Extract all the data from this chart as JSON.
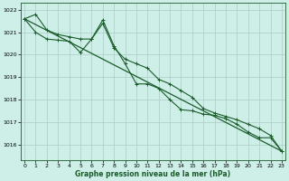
{
  "title": "Graphe pression niveau de la mer (hPa)",
  "background_color": "#ceeee8",
  "grid_color": "#aaccc4",
  "line_color": "#1a5c2a",
  "x_ticks": [
    0,
    1,
    2,
    3,
    4,
    5,
    6,
    7,
    8,
    9,
    10,
    11,
    12,
    13,
    14,
    15,
    16,
    17,
    18,
    19,
    20,
    21,
    22,
    23
  ],
  "y_ticks": [
    1016,
    1017,
    1018,
    1019,
    1020,
    1021,
    1022
  ],
  "ylim": [
    1015.3,
    1022.3
  ],
  "xlim": [
    -0.3,
    23.3
  ],
  "series1_x": [
    0,
    1,
    2,
    3,
    4,
    5,
    6,
    7,
    8,
    9,
    10,
    11,
    12,
    13,
    14,
    15,
    16,
    17,
    18,
    19,
    20,
    21,
    22,
    23
  ],
  "series1_y": [
    1021.6,
    1021.8,
    1021.1,
    1020.9,
    1020.8,
    1020.7,
    1020.7,
    1021.4,
    1020.3,
    1019.8,
    1019.6,
    1019.4,
    1018.9,
    1018.7,
    1018.4,
    1018.1,
    1017.6,
    1017.4,
    1017.25,
    1017.1,
    1016.9,
    1016.7,
    1016.4,
    1015.7
  ],
  "series2_x": [
    0,
    1,
    2,
    3,
    4,
    5,
    6,
    7,
    8,
    9,
    10,
    11,
    12,
    13,
    14,
    15,
    16,
    17,
    18,
    19,
    20,
    21,
    22,
    23
  ],
  "series2_y": [
    1021.6,
    1021.0,
    1020.7,
    1020.65,
    1020.6,
    1020.1,
    1020.7,
    1021.55,
    1020.4,
    1019.6,
    1018.7,
    1018.7,
    1018.5,
    1018.0,
    1017.55,
    1017.5,
    1017.35,
    1017.3,
    1017.15,
    1016.9,
    1016.55,
    1016.3,
    1016.3,
    1015.7
  ],
  "series3_x": [
    0,
    23
  ],
  "series3_y": [
    1021.6,
    1015.7
  ]
}
